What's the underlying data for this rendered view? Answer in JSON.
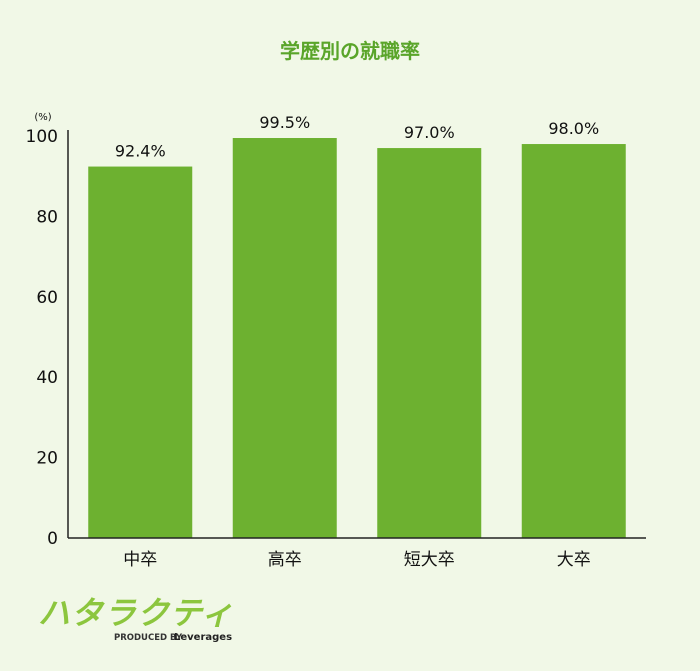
{
  "chart_data": {
    "type": "bar",
    "title": "学歴別の就職率",
    "unit": "(%)",
    "categories": [
      "中卒",
      "高卒",
      "短大卒",
      "大卒"
    ],
    "values": [
      92.4,
      99.5,
      97.0,
      98.0
    ],
    "data_labels": [
      "92.4%",
      "99.5%",
      "97.0%",
      "98.0%"
    ],
    "ylim": [
      0,
      100
    ],
    "yticks": [
      0,
      20,
      40,
      60,
      80,
      100
    ],
    "grid": false,
    "legend": "none",
    "bar_color": "#6db130"
  },
  "logo": {
    "text": "ハタラクティブ",
    "produced_by": "PRODUCED BY",
    "brand": "Leverages"
  },
  "colors": {
    "background": "#f1f8e7",
    "title": "#5aa52a",
    "logo": "#8cc63e"
  }
}
